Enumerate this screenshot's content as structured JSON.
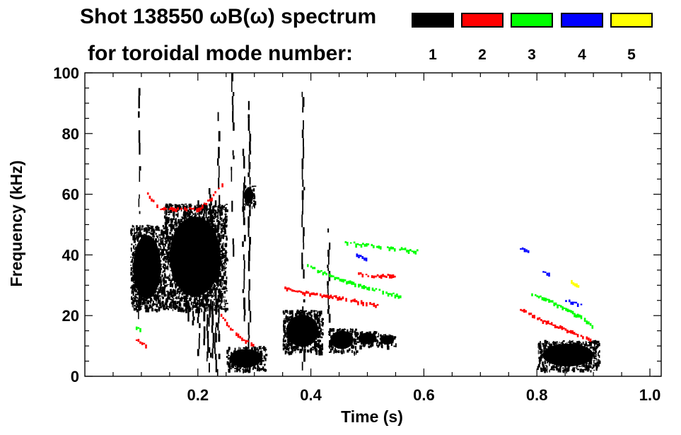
{
  "chart_data": {
    "type": "heatmap",
    "title_line1": "Shot 138550 ωB(ω) spectrum",
    "title_line2": "for toroidal mode number:",
    "xlabel": "Time (s)",
    "ylabel": "Frequency (kHz)",
    "xlim": [
      0.0,
      1.02
    ],
    "ylim": [
      0,
      100
    ],
    "x_ticks": [
      0.2,
      0.4,
      0.6,
      0.8,
      1.0
    ],
    "x_tick_labels": [
      "0.2",
      "0.4",
      "0.6",
      "0.8",
      "1.0"
    ],
    "y_ticks": [
      0,
      20,
      40,
      60,
      80,
      100
    ],
    "y_tick_labels": [
      "0",
      "20",
      "40",
      "60",
      "80",
      "100"
    ],
    "legend": [
      {
        "mode": "1",
        "color": "#000000"
      },
      {
        "mode": "2",
        "color": "#ff0000"
      },
      {
        "mode": "3",
        "color": "#00ff00"
      },
      {
        "mode": "4",
        "color": "#0000ff"
      },
      {
        "mode": "5",
        "color": "#ffff00"
      }
    ],
    "series": [
      {
        "mode": "1",
        "color": "#000000",
        "regions": [
          {
            "t": [
              0.08,
              0.14
            ],
            "f": [
              22,
              50
            ]
          },
          {
            "t": [
              0.14,
              0.25
            ],
            "f": [
              22,
              57
            ]
          },
          {
            "t": [
              0.25,
              0.32
            ],
            "f": [
              2,
              10
            ]
          },
          {
            "t": [
              0.28,
              0.3
            ],
            "f": [
              56,
              63
            ]
          },
          {
            "t": [
              0.35,
              0.42
            ],
            "f": [
              8,
              22
            ]
          },
          {
            "t": [
              0.43,
              0.48
            ],
            "f": [
              8,
              16
            ]
          },
          {
            "t": [
              0.48,
              0.52
            ],
            "f": [
              10,
              15
            ]
          },
          {
            "t": [
              0.52,
              0.55
            ],
            "f": [
              10,
              14
            ]
          },
          {
            "t": [
              0.8,
              0.91
            ],
            "f": [
              2,
              12
            ]
          }
        ],
        "strands": [
          {
            "t": 0.2,
            "f": [
              8,
              58
            ]
          },
          {
            "t": 0.21,
            "f": [
              8,
              60
            ]
          },
          {
            "t": 0.215,
            "f": [
              5,
              56
            ]
          },
          {
            "t": 0.22,
            "f": [
              3,
              62
            ]
          },
          {
            "t": 0.225,
            "f": [
              6,
              55
            ]
          },
          {
            "t": 0.23,
            "f": [
              4,
              58
            ]
          },
          {
            "t": 0.235,
            "f": [
              2,
              90
            ]
          },
          {
            "t": 0.19,
            "f": [
              15,
              55
            ]
          },
          {
            "t": 0.18,
            "f": [
              20,
              50
            ]
          },
          {
            "t": 0.29,
            "f": [
              12,
              92
            ]
          },
          {
            "t": 0.28,
            "f": [
              20,
              75
            ]
          },
          {
            "t": 0.385,
            "f": [
              2,
              100
            ]
          },
          {
            "t": 0.095,
            "f": [
              20,
              95
            ]
          },
          {
            "t": 0.26,
            "f": [
              40,
              100
            ]
          },
          {
            "t": 0.43,
            "f": [
              18,
              50
            ]
          }
        ]
      },
      {
        "mode": "2",
        "color": "#ff0000",
        "lines": [
          [
            [
              0.11,
              60
            ],
            [
              0.13,
              55
            ],
            [
              0.16,
              55
            ],
            [
              0.2,
              55
            ],
            [
              0.22,
              58
            ],
            [
              0.245,
              64
            ]
          ],
          [
            [
              0.24,
              20
            ],
            [
              0.26,
              15
            ],
            [
              0.28,
              12
            ],
            [
              0.3,
              10
            ]
          ],
          [
            [
              0.35,
              29
            ],
            [
              0.4,
              27
            ],
            [
              0.44,
              26
            ],
            [
              0.47,
              25
            ],
            [
              0.5,
              24
            ],
            [
              0.52,
              23
            ]
          ],
          [
            [
              0.48,
              34
            ],
            [
              0.5,
              33
            ],
            [
              0.52,
              33
            ],
            [
              0.55,
              33
            ]
          ],
          [
            [
              0.77,
              22
            ],
            [
              0.8,
              19
            ],
            [
              0.84,
              16
            ],
            [
              0.88,
              13
            ],
            [
              0.9,
              11
            ]
          ],
          [
            [
              0.09,
              12
            ],
            [
              0.11,
              10
            ]
          ]
        ]
      },
      {
        "mode": "3",
        "color": "#00ff00",
        "lines": [
          [
            [
              0.39,
              37
            ],
            [
              0.42,
              34
            ],
            [
              0.45,
              32
            ],
            [
              0.48,
              30
            ],
            [
              0.52,
              28
            ],
            [
              0.56,
              26
            ]
          ],
          [
            [
              0.46,
              44
            ],
            [
              0.5,
              43
            ],
            [
              0.55,
              42
            ],
            [
              0.59,
              41
            ]
          ],
          [
            [
              0.79,
              27
            ],
            [
              0.82,
              25
            ],
            [
              0.85,
              22
            ],
            [
              0.88,
              19
            ],
            [
              0.9,
              16
            ]
          ],
          [
            [
              0.09,
              16
            ],
            [
              0.1,
              15
            ]
          ]
        ]
      },
      {
        "mode": "4",
        "color": "#0000ff",
        "lines": [
          [
            [
              0.48,
              40
            ],
            [
              0.5,
              38
            ]
          ],
          [
            [
              0.77,
              42
            ],
            [
              0.79,
              41
            ]
          ],
          [
            [
              0.81,
              34
            ],
            [
              0.83,
              34
            ]
          ],
          [
            [
              0.85,
              25
            ],
            [
              0.88,
              23
            ]
          ]
        ]
      },
      {
        "mode": "5",
        "color": "#ffff00",
        "lines": [
          [
            [
              0.86,
              31
            ],
            [
              0.875,
              29
            ]
          ]
        ]
      }
    ]
  }
}
